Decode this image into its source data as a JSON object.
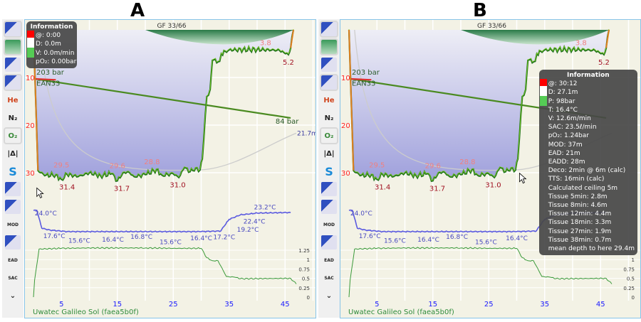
{
  "panels": [
    {
      "letter": "A",
      "gf": "GF 33/66",
      "device": "Uwatec Galileo Sol (faea5b0f)",
      "info": {
        "title": "Information",
        "rows": [
          "@: 0:00",
          "D: 0.0m",
          "V: 0.0m/min",
          "pO₂: 0.00bar"
        ]
      }
    },
    {
      "letter": "B",
      "gf": "GF 33/66",
      "device": "Uwatec Galileo Sol (faea5b0f)",
      "info": {
        "title": "Information",
        "rows": [
          "@: 30:12",
          "D: 27.1m",
          "P: 98bar",
          "T: 16.4°C",
          "V: 12.6m/min",
          "SAC: 23.5ℓ/min",
          "pO₂: 1.24bar",
          "MOD: 37m",
          "EAD: 21m",
          "EADD: 28m",
          "Deco: 2min @ 6m (calc)",
          "TTS: 16min (calc)",
          "Calculated ceiling 5m",
          "Tissue 5min: 2.8m",
          "Tissue 8min: 4.6m",
          "Tissue 12min: 4.4m",
          "Tissue 18min: 3.3m",
          "Tissue 27min: 1.9m",
          "Tissue 38min: 0.7m",
          "mean depth to here 29.4m"
        ]
      }
    }
  ],
  "toolbar": [
    "profile-ruler",
    "deco-ceiling",
    "calculated-ceiling",
    "tissue-view",
    "He",
    "N₂",
    "O₂",
    "delta",
    "smoothing",
    "heatmap",
    "scuba-diver",
    "MOD",
    "rate",
    "EAD",
    "SAC",
    "more"
  ],
  "chart_data": {
    "type": "line",
    "x_ticks": [
      5,
      15,
      25,
      35,
      45
    ],
    "depth_ticks": [
      10,
      20,
      30
    ],
    "depth": [
      [
        0,
        0
      ],
      [
        0.8,
        29.5
      ],
      [
        2,
        30.6
      ],
      [
        4,
        30.4
      ],
      [
        5,
        31.4
      ],
      [
        6,
        30.3
      ],
      [
        8,
        30.8
      ],
      [
        10,
        30
      ],
      [
        12,
        30.6
      ],
      [
        14,
        30.2
      ],
      [
        15,
        31.7
      ],
      [
        16,
        30
      ],
      [
        17,
        29.8
      ],
      [
        18,
        30.8
      ],
      [
        20,
        30.4
      ],
      [
        22,
        29.3
      ],
      [
        23,
        30.5
      ],
      [
        25,
        30.2
      ],
      [
        26,
        31.0
      ],
      [
        27,
        28.9
      ],
      [
        28,
        29.8
      ],
      [
        29,
        29
      ],
      [
        29.8,
        29.4
      ],
      [
        30.2,
        27.1
      ],
      [
        31,
        14
      ],
      [
        31.6,
        12.5
      ],
      [
        32,
        6.4
      ],
      [
        33.3,
        6.6
      ],
      [
        33.6,
        5
      ],
      [
        35,
        4.2
      ],
      [
        40,
        4.1
      ],
      [
        44,
        4.3
      ],
      [
        45.6,
        5.2
      ],
      [
        46,
        3.8
      ],
      [
        46.5,
        0
      ]
    ],
    "depth_labels": [
      {
        "t": 5,
        "v": "29.5",
        "kind": "min"
      },
      {
        "t": 6,
        "v": "31.4",
        "kind": "max"
      },
      {
        "t": 15,
        "v": "29.6",
        "kind": "min"
      },
      {
        "t": 15.8,
        "v": "31.7",
        "kind": "max"
      },
      {
        "t": 21.2,
        "v": "28.8",
        "kind": "min"
      },
      {
        "t": 25.8,
        "v": "31.0",
        "kind": "max"
      },
      {
        "t": 41.5,
        "v": "3.8",
        "kind": "min"
      },
      {
        "t": 45.6,
        "v": "5.2",
        "kind": "max"
      }
    ],
    "temperature": [
      [
        0,
        24
      ],
      [
        0.6,
        24
      ],
      [
        1.5,
        18
      ],
      [
        3,
        17.4
      ],
      [
        6,
        16.9
      ],
      [
        30,
        16.9
      ],
      [
        33.5,
        17.1
      ],
      [
        34,
        18.5
      ],
      [
        35,
        21
      ],
      [
        37,
        22.5
      ],
      [
        40,
        23.1
      ],
      [
        46,
        23.3
      ]
    ],
    "temperature_labels": [
      {
        "t": 0.5,
        "v": "24.0°C"
      },
      {
        "t": 2,
        "v": "17.6°C"
      },
      {
        "t": 6.5,
        "v": "15.6°C"
      },
      {
        "t": 12.5,
        "v": "16.4°C"
      },
      {
        "t": 17.6,
        "v": "16.8°C"
      },
      {
        "t": 22.8,
        "v": "15.6°C"
      },
      {
        "t": 28.3,
        "v": "16.4°C"
      },
      {
        "t": 32.4,
        "v": "17.2°C"
      },
      {
        "t": 36,
        "v": "19.2°C"
      },
      {
        "t": 37.8,
        "v": "22.4°C"
      },
      {
        "t": 39.7,
        "v": "23.2°C"
      }
    ],
    "pressure": {
      "start": 203,
      "end": 84,
      "start_label": "203 bar",
      "end_label": "84 bar",
      "gas": "EAN33"
    },
    "mean_depth_label": "21.7m",
    "po2": [
      [
        0,
        0
      ],
      [
        0.2,
        0.45
      ],
      [
        1,
        1.28
      ],
      [
        5,
        1.3
      ],
      [
        10,
        1.31
      ],
      [
        20,
        1.31
      ],
      [
        25,
        1.3
      ],
      [
        30,
        1.3
      ],
      [
        31,
        1.05
      ],
      [
        32,
        0.97
      ],
      [
        33,
        0.97
      ],
      [
        34.5,
        0.55
      ],
      [
        36,
        0.53
      ],
      [
        37,
        0.49
      ],
      [
        46,
        0.5
      ],
      [
        47,
        0.35
      ]
    ],
    "po2_ticks": [
      0,
      0.25,
      0.5,
      0.75,
      1,
      1.25
    ],
    "colors": {
      "depth_fill": "#9fa0dc",
      "temperature": "#5a5ae0",
      "po2": "#3a9a3a",
      "ceiling": "#2e7d4a",
      "axis_depth": "#ff2020",
      "time_ticks": "#1a1aff"
    }
  }
}
